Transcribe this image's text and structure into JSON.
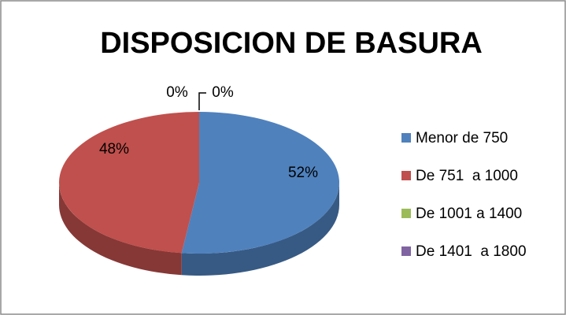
{
  "chart_data": {
    "type": "pie",
    "title": "DISPOSICION DE BASURA",
    "categories": [
      "Menor de 750",
      "De 751  a 1000",
      "De 1001 a 1400",
      "De 1401  a 1800"
    ],
    "values": [
      52,
      48,
      0,
      0
    ],
    "value_labels": [
      "52%",
      "48%",
      "0%",
      "0%"
    ],
    "colors": [
      "#4f81bd",
      "#c0504d",
      "#9bbb59",
      "#8064a2"
    ],
    "legend": "right"
  }
}
